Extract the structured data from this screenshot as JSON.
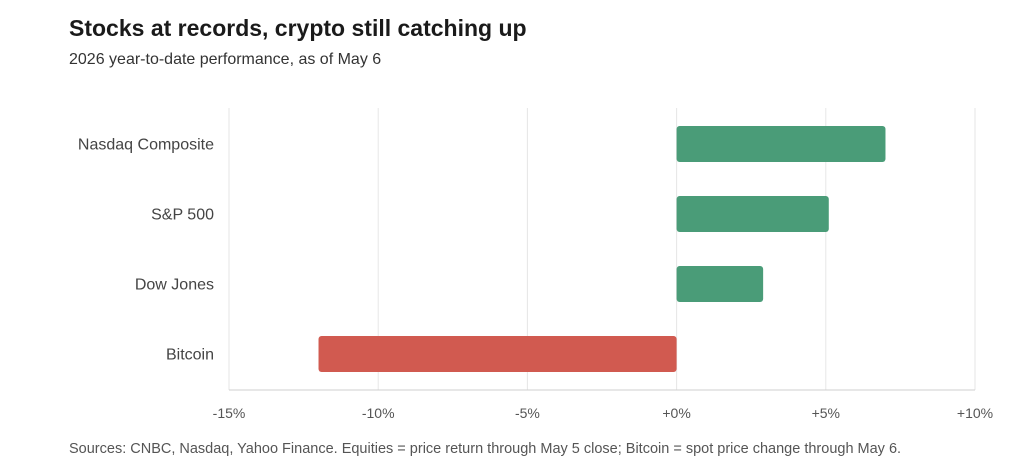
{
  "chart_data": {
    "type": "bar",
    "orientation": "horizontal",
    "title": "Stocks at records, crypto still catching up",
    "subtitle": "2026 year-to-date performance, as of May 6",
    "categories": [
      "Nasdaq Composite",
      "S&P 500",
      "Dow Jones",
      "Bitcoin"
    ],
    "values": [
      7.0,
      5.1,
      2.9,
      -12.0
    ],
    "unit": "%",
    "xlim": [
      -15,
      10
    ],
    "xticks": [
      -15,
      -10,
      -5,
      0,
      5,
      10
    ],
    "xtick_labels": [
      "-15%",
      "-10%",
      "-5%",
      "+0%",
      "+5%",
      "+10%"
    ],
    "grid": true,
    "legend": "none",
    "colors": {
      "positive": "#4a9c78",
      "negative": "#d15a50"
    }
  },
  "footer": {
    "source": "Sources: CNBC, Nasdaq, Yahoo Finance. Equities = price return through May 5 close; Bitcoin = spot price change through May 6."
  }
}
